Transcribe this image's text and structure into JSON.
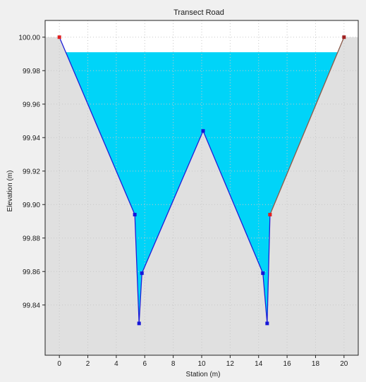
{
  "chart_data": {
    "type": "area",
    "title": "Transect Road",
    "xlabel": "Station (m)",
    "ylabel": "Elevation (m)",
    "xlim": [
      -1,
      21
    ],
    "ylim": [
      99.81,
      100.01
    ],
    "xticks": [
      0,
      2,
      4,
      6,
      8,
      10,
      12,
      14,
      16,
      18,
      20
    ],
    "yticks": [
      99.84,
      99.86,
      99.88,
      99.9,
      99.92,
      99.94,
      99.96,
      99.98,
      100.0
    ],
    "ytick_labels": [
      "99.84",
      "99.86",
      "99.88",
      "99.90",
      "99.92",
      "99.94",
      "99.96",
      "99.98",
      "100.00"
    ],
    "grid": true,
    "water_level": 99.991,
    "profile": {
      "x": [
        0,
        5.3,
        5.6,
        5.8,
        10.1,
        14.3,
        14.6,
        14.8,
        20
      ],
      "y": [
        100.0,
        99.894,
        99.829,
        99.859,
        99.944,
        99.859,
        99.829,
        99.894,
        100.0
      ],
      "point_types": [
        "end",
        "mid",
        "mid",
        "mid",
        "mid",
        "mid",
        "mid",
        "end",
        "end"
      ]
    },
    "colors": {
      "water": "#00d4f8",
      "bank_fill": "#ffffff",
      "dry_area": "#e0e0e0",
      "profile_line": "#1f1fd8",
      "right_bank_line": "#8a5a4a",
      "mid_marker": "#1616d8",
      "end_marker": "#e02020",
      "right_end_marker": "#a02020"
    }
  }
}
